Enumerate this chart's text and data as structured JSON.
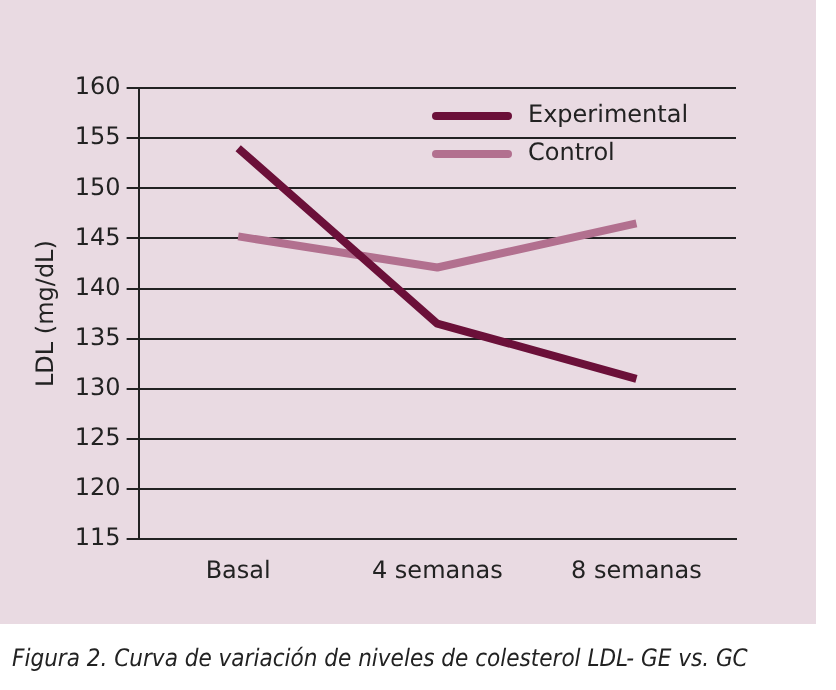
{
  "chart_data": {
    "type": "line",
    "ylabel": "LDL (mg/dL)",
    "categories": [
      "Basal",
      "4 semanas",
      "8 semanas"
    ],
    "series": [
      {
        "name": "Experimental",
        "color": "#6b1039",
        "values": [
          154,
          136.5,
          131
        ]
      },
      {
        "name": "Control",
        "color": "#b2708f",
        "values": [
          145.2,
          142.1,
          146.5
        ]
      }
    ],
    "ylim": [
      115,
      160
    ],
    "yticks": [
      115,
      120,
      125,
      130,
      135,
      140,
      145,
      150,
      155,
      160
    ],
    "grid": "y",
    "legend": "top right",
    "marker": "none",
    "line_style": "solid",
    "annotations": [
      "Figura 2. Curva de variación de niveles de colesterol LDL- GE vs. GC"
    ]
  }
}
